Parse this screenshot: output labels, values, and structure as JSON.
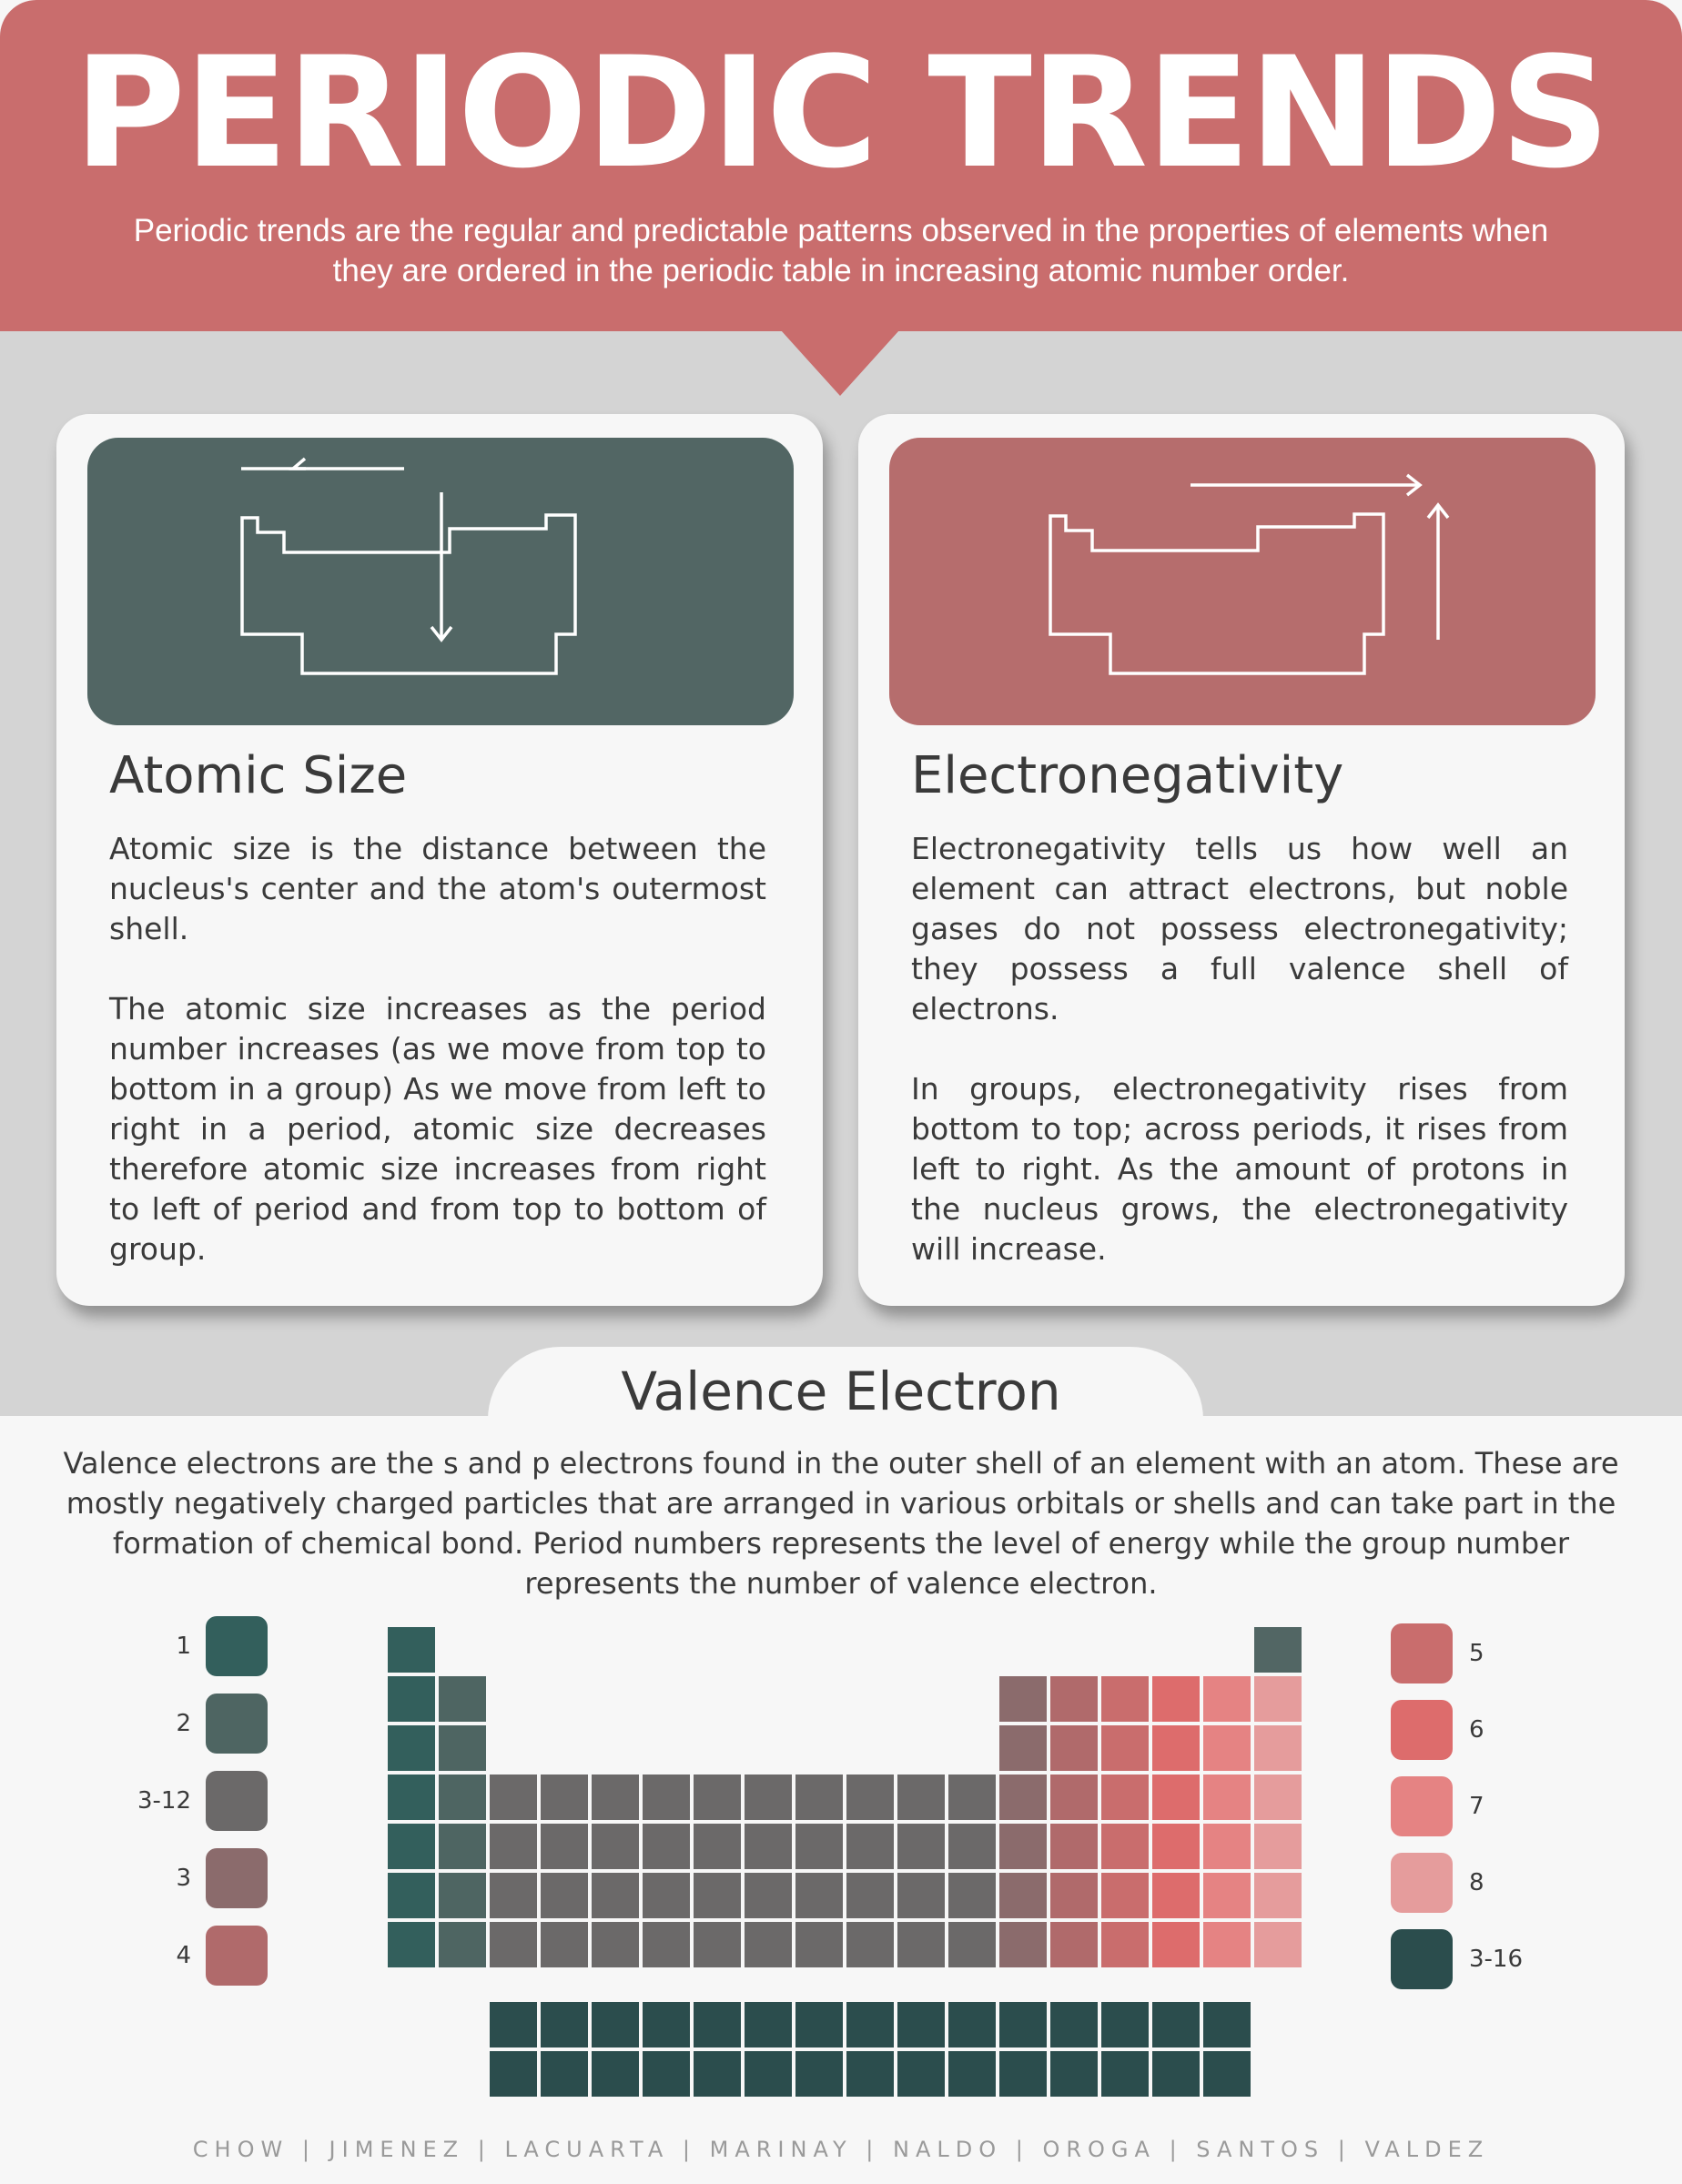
{
  "header": {
    "title": "PERIODIC TRENDS",
    "description": "Periodic trends are the regular and predictable patterns observed in the properties of elements when they are ordered in the periodic table in increasing atomic number order."
  },
  "colors": {
    "header": "#c96d6d",
    "teal_banner": "#526664",
    "rose_banner": "#b66d6d",
    "group1": "#335f5c",
    "group2": "#4e6562",
    "transition": "#6b6969",
    "group3": "#8b6b6c",
    "group4": "#b06a6b",
    "group5": "#c96d6d",
    "group6": "#dd6c6c",
    "group7": "#e58383",
    "group8": "#e59c9c",
    "inner": "#2b4d4d",
    "noble_top": "#526664"
  },
  "cards": [
    {
      "banner_icon": "periodic-table-outline-arrows-left-down-icon",
      "title": "Atomic Size",
      "paragraphs": [
        "Atomic size is the distance between the nucleus's center and the atom's outermost shell.",
        "The atomic size increases as the period number increases (as we move from top to bottom in a group) As we move from left to right in a period, atomic size decreases therefore atomic size increases from right to left of period and from top to bottom of group."
      ]
    },
    {
      "banner_icon": "periodic-table-outline-arrows-right-up-icon",
      "title": "Electronegativity",
      "paragraphs": [
        "Electronegativity tells us how well an element can attract electrons, but noble gases do not possess electronegativity; they possess a full valence shell of electrons.",
        "In groups, electronegativity rises from bottom to top; across periods, it rises from left to right. As the amount of protons in the nucleus grows, the electronegativity will increase."
      ]
    }
  ],
  "valence": {
    "title": "Valence Electron",
    "description": "Valence electrons are the s and p electrons found in the outer shell of an element with an atom. These are mostly negatively charged particles that are arranged in various orbitals or shells and can take part in the formation of chemical bond. Period numbers represents the level of energy while the group number represents the number of valence electron."
  },
  "legend_left": [
    {
      "label": "1",
      "color": "#335f5c"
    },
    {
      "label": "2",
      "color": "#4e6562"
    },
    {
      "label": "3-12",
      "color": "#6b6969"
    },
    {
      "label": "3",
      "color": "#8b6b6c"
    },
    {
      "label": "4",
      "color": "#b06a6b"
    }
  ],
  "legend_right": [
    {
      "label": "5",
      "color": "#c96d6d"
    },
    {
      "label": "6",
      "color": "#dd6c6c"
    },
    {
      "label": "7",
      "color": "#e58383"
    },
    {
      "label": "8",
      "color": "#e59c9c"
    },
    {
      "label": "3-16",
      "color": "#2b4d4d"
    }
  ],
  "footer": {
    "names": "CHOW | JIMENEZ | LACUARTA | MARINAY | NALDO | OROGA | SANTOS | VALDEZ"
  }
}
